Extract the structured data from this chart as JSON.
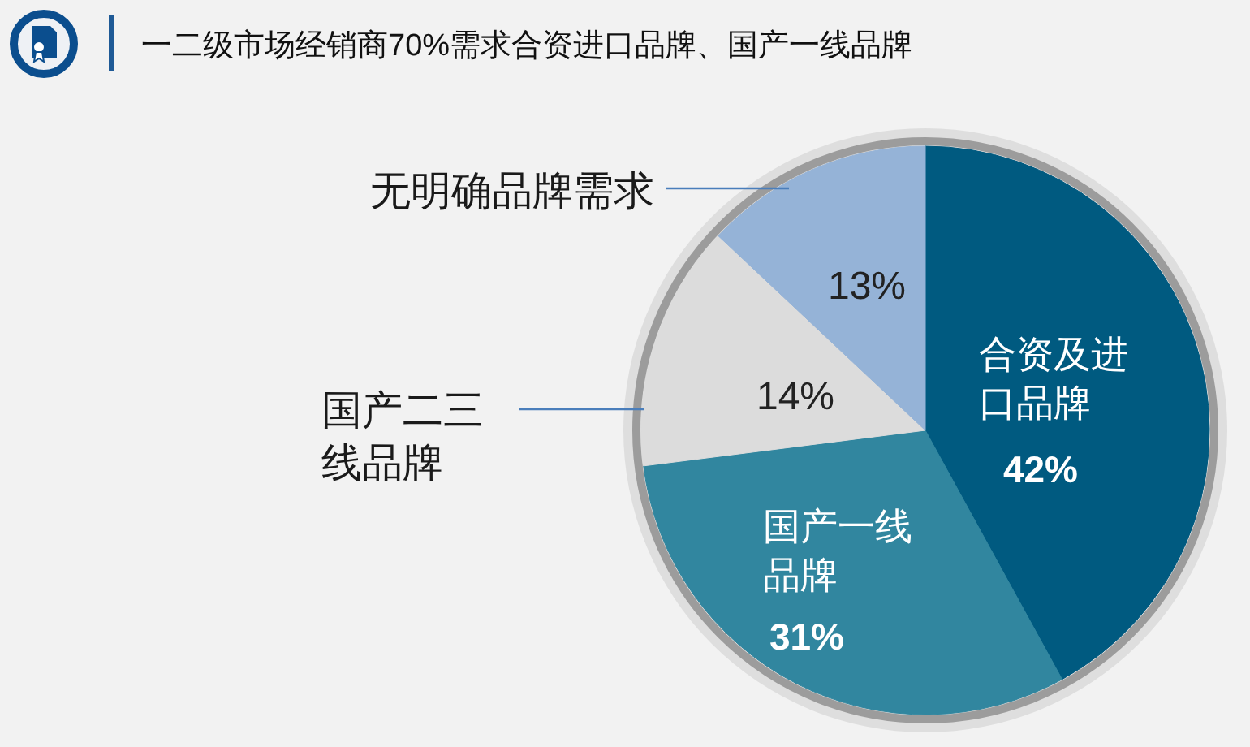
{
  "chart_data": {
    "type": "pie",
    "title": "一二级市场经销商70%需求合资进口品牌、国产一线品牌",
    "categories": [
      "合资及进口品牌",
      "国产一线品牌",
      "国产二三线品牌",
      "无明确品牌需求"
    ],
    "values": [
      42,
      31,
      14,
      13
    ],
    "colors": [
      "#005a80",
      "#31869f",
      "#dcdcdc",
      "#95b3d7"
    ],
    "value_labels": [
      "42%",
      "31%",
      "14%",
      "13%"
    ]
  }
}
